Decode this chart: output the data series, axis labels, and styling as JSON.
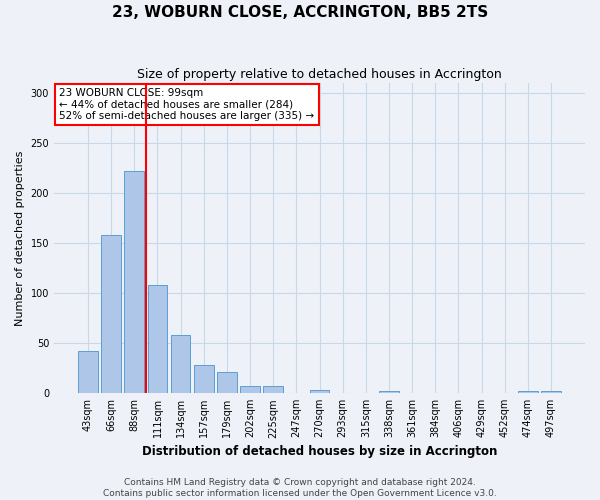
{
  "title": "23, WOBURN CLOSE, ACCRINGTON, BB5 2TS",
  "subtitle": "Size of property relative to detached houses in Accrington",
  "xlabel": "Distribution of detached houses by size in Accrington",
  "ylabel": "Number of detached properties",
  "bar_labels": [
    "43sqm",
    "66sqm",
    "88sqm",
    "111sqm",
    "134sqm",
    "157sqm",
    "179sqm",
    "202sqm",
    "225sqm",
    "247sqm",
    "270sqm",
    "293sqm",
    "315sqm",
    "338sqm",
    "361sqm",
    "384sqm",
    "406sqm",
    "429sqm",
    "452sqm",
    "474sqm",
    "497sqm"
  ],
  "bar_values": [
    42,
    158,
    222,
    108,
    58,
    28,
    21,
    7,
    7,
    0,
    3,
    0,
    0,
    2,
    0,
    0,
    0,
    0,
    0,
    2,
    2
  ],
  "bar_color": "#aec6e8",
  "bar_edge_color": "#5a9fd4",
  "grid_color": "#c8d8e8",
  "background_color": "#eef2f8",
  "red_line_x": 2.52,
  "annotation_text": "23 WOBURN CLOSE: 99sqm\n← 44% of detached houses are smaller (284)\n52% of semi-detached houses are larger (335) →",
  "annotation_box_color": "white",
  "annotation_box_edgecolor": "red",
  "ylim": [
    0,
    310
  ],
  "yticks": [
    0,
    50,
    100,
    150,
    200,
    250,
    300
  ],
  "footnote": "Contains HM Land Registry data © Crown copyright and database right 2024.\nContains public sector information licensed under the Open Government Licence v3.0.",
  "title_fontsize": 11,
  "subtitle_fontsize": 9,
  "xlabel_fontsize": 8.5,
  "ylabel_fontsize": 8,
  "tick_fontsize": 7,
  "annotation_fontsize": 7.5,
  "footnote_fontsize": 6.5
}
